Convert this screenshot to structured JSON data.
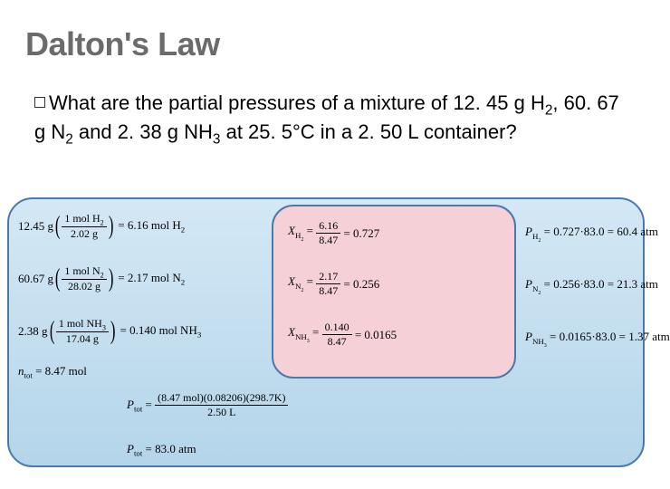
{
  "title": "Dalton's Law",
  "question": {
    "prefix": "What",
    "rest_a": " are the partial pressures of a mixture of 12. 45 g H",
    "rest_b": ", 60. 67 g N",
    "rest_c": " and 2. 38 g NH",
    "rest_d": " at 25. 5°C in a 2. 50 L container?"
  },
  "colors": {
    "title_color": "#6b6b6b",
    "outer_bg_top": "#d4e8f5",
    "outer_bg_bottom": "#b4d5ea",
    "outer_border": "#4a7ba8",
    "inner_bg": "#f5d0d6"
  },
  "calc": {
    "h2": {
      "mass": "12.45 g",
      "num": "1 mol H",
      "den": "2.02 g",
      "result": "6.16 mol H"
    },
    "n2": {
      "mass": "60.67 g",
      "num": "1 mol N",
      "den": "28.02 g",
      "result": "2.17 mol N"
    },
    "nh3": {
      "mass": "2.38 g",
      "num": "1 mol NH",
      "den": "17.04 g",
      "result": "0.140 mol NH"
    },
    "ntot": "8.47 mol",
    "ptot": {
      "num": "(8.47 mol)(0.08206)(298.7K)",
      "den": "2.50 L",
      "result": "83.0 atm"
    }
  },
  "molefrac": {
    "h2": {
      "num": "6.16",
      "den": "8.47",
      "val": "0.727"
    },
    "n2": {
      "num": "2.17",
      "den": "8.47",
      "val": "0.256"
    },
    "nh3": {
      "num": "0.140",
      "den": "8.47",
      "val": "0.0165"
    }
  },
  "partials": {
    "h2": {
      "expr": "0.727·83.0",
      "val": "60.4 atm"
    },
    "n2": {
      "expr": "0.256·83.0",
      "val": "21.3 atm"
    },
    "nh3": {
      "expr": "0.0165·83.0",
      "val": "1.37 atm"
    }
  }
}
